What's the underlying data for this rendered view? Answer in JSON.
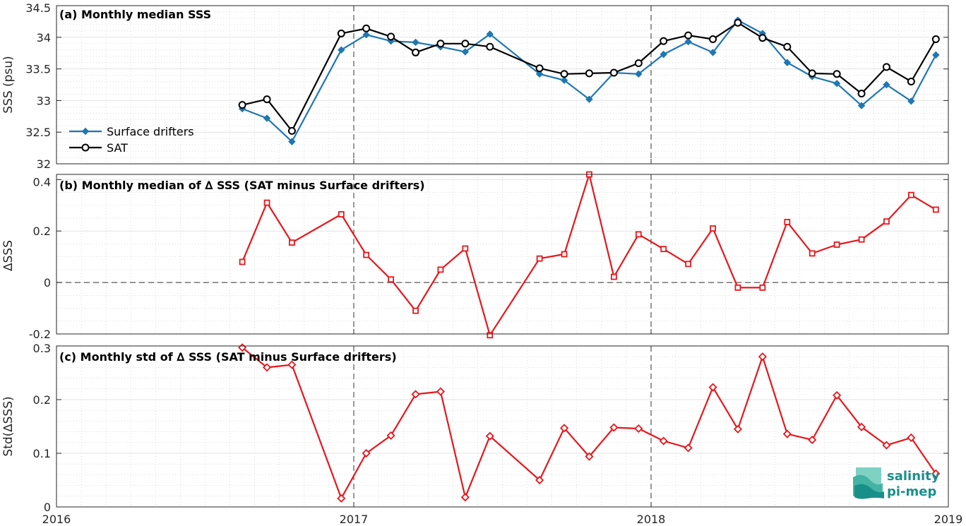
{
  "chart_data": [
    {
      "type": "line",
      "title": "(a) Monthly median SSS",
      "ylabel": "SSS (psu)",
      "ylim": [
        32,
        34.5
      ],
      "yticks": [
        "32",
        "32.5",
        "33",
        "33.5",
        "34",
        "34.5"
      ],
      "ytick_values": [
        32,
        32.5,
        33,
        33.5,
        34,
        34.5
      ],
      "xlim": [
        2016,
        2019
      ],
      "grid": true,
      "legend_position": "lower-left",
      "x": [
        2016.625,
        2016.708,
        2016.792,
        2016.958,
        2017.042,
        2017.125,
        2017.208,
        2017.292,
        2017.375,
        2017.458,
        2017.625,
        2017.708,
        2017.792,
        2017.875,
        2017.958,
        2018.042,
        2018.125,
        2018.208,
        2018.292,
        2018.375,
        2018.458,
        2018.542,
        2018.625,
        2018.708,
        2018.792,
        2018.875,
        2018.958
      ],
      "series": [
        {
          "name": "Surface drifters",
          "color": "#1f77b4",
          "marker": "diamond-filled",
          "values": [
            32.87,
            32.72,
            32.35,
            33.8,
            34.04,
            33.94,
            33.92,
            33.85,
            33.77,
            34.05,
            33.42,
            33.32,
            33.02,
            33.44,
            33.42,
            33.73,
            33.93,
            33.76,
            34.27,
            34.06,
            33.6,
            33.38,
            33.27,
            32.92,
            33.25,
            32.99,
            33.72
          ]
        },
        {
          "name": "SAT",
          "color": "#000000",
          "marker": "circle-open",
          "values": [
            32.93,
            33.02,
            32.52,
            34.06,
            34.14,
            34.01,
            33.76,
            33.9,
            33.9,
            33.85,
            33.51,
            33.42,
            33.43,
            33.44,
            33.59,
            33.94,
            34.03,
            33.97,
            34.23,
            33.99,
            33.85,
            33.43,
            33.42,
            33.11,
            33.53,
            33.3,
            33.97
          ]
        }
      ]
    },
    {
      "type": "line",
      "title": "(b) Monthly median of ∆ SSS (SAT minus Surface drifters)",
      "ylabel": "∆SSS",
      "ylim": [
        -0.2,
        0.42
      ],
      "yticks": [
        "-0.2",
        "0",
        "0.2",
        "0.4"
      ],
      "ytick_values": [
        -0.2,
        0,
        0.2,
        0.4
      ],
      "xlim": [
        2016,
        2019
      ],
      "grid": true,
      "zero_line": "dashed",
      "x": [
        2016.625,
        2016.708,
        2016.792,
        2016.958,
        2017.042,
        2017.125,
        2017.208,
        2017.292,
        2017.375,
        2017.458,
        2017.625,
        2017.708,
        2017.792,
        2017.875,
        2017.958,
        2018.042,
        2018.125,
        2018.208,
        2018.292,
        2018.375,
        2018.458,
        2018.542,
        2018.625,
        2018.708,
        2018.792,
        2018.875,
        2018.958
      ],
      "series": [
        {
          "color": "#e8161b",
          "marker": "square-open",
          "values": [
            0.08,
            0.31,
            0.155,
            0.265,
            0.107,
            0.012,
            -0.11,
            0.05,
            0.132,
            -0.205,
            0.093,
            0.11,
            0.42,
            0.022,
            0.187,
            0.13,
            0.072,
            0.21,
            -0.02,
            -0.02,
            0.235,
            0.113,
            0.147,
            0.167,
            0.237,
            0.34,
            0.283
          ]
        }
      ]
    },
    {
      "type": "line",
      "title": "(c) Monthly std of ∆ SSS (SAT minus Surface drifters)",
      "ylabel": "Std(∆SSS)",
      "ylim": [
        0,
        0.3
      ],
      "yticks": [
        "0",
        "0.1",
        "0.2",
        "0.3"
      ],
      "ytick_values": [
        0,
        0.1,
        0.2,
        0.3
      ],
      "xlim": [
        2016,
        2019
      ],
      "grid": true,
      "x": [
        2016.625,
        2016.708,
        2016.792,
        2016.958,
        2017.042,
        2017.125,
        2017.208,
        2017.292,
        2017.375,
        2017.458,
        2017.625,
        2017.708,
        2017.792,
        2017.875,
        2017.958,
        2018.042,
        2018.125,
        2018.208,
        2018.292,
        2018.375,
        2018.458,
        2018.542,
        2018.625,
        2018.708,
        2018.792,
        2018.875,
        2018.958
      ],
      "series": [
        {
          "color": "#e8161b",
          "marker": "diamond-open",
          "values": [
            0.297,
            0.26,
            0.265,
            0.016,
            0.1,
            0.133,
            0.21,
            0.215,
            0.018,
            0.132,
            0.05,
            0.147,
            0.094,
            0.148,
            0.146,
            0.123,
            0.11,
            0.223,
            0.145,
            0.28,
            0.136,
            0.125,
            0.208,
            0.149,
            0.115,
            0.129,
            0.062
          ]
        }
      ]
    }
  ],
  "x_axis": {
    "ticks": [
      "2016",
      "2017",
      "2018",
      "2019"
    ],
    "tick_values": [
      2016,
      2017,
      2018,
      2019
    ],
    "dashed_verticals": [
      2017,
      2018
    ]
  },
  "legend": {
    "items": [
      {
        "label": "Surface drifters",
        "color": "#1f77b4",
        "marker": "diamond-filled"
      },
      {
        "label": "SAT",
        "color": "#000000",
        "marker": "circle-open"
      }
    ]
  },
  "logo": {
    "line1": "salinity",
    "line2": "pi-mep",
    "color": "#1a8f8a"
  }
}
